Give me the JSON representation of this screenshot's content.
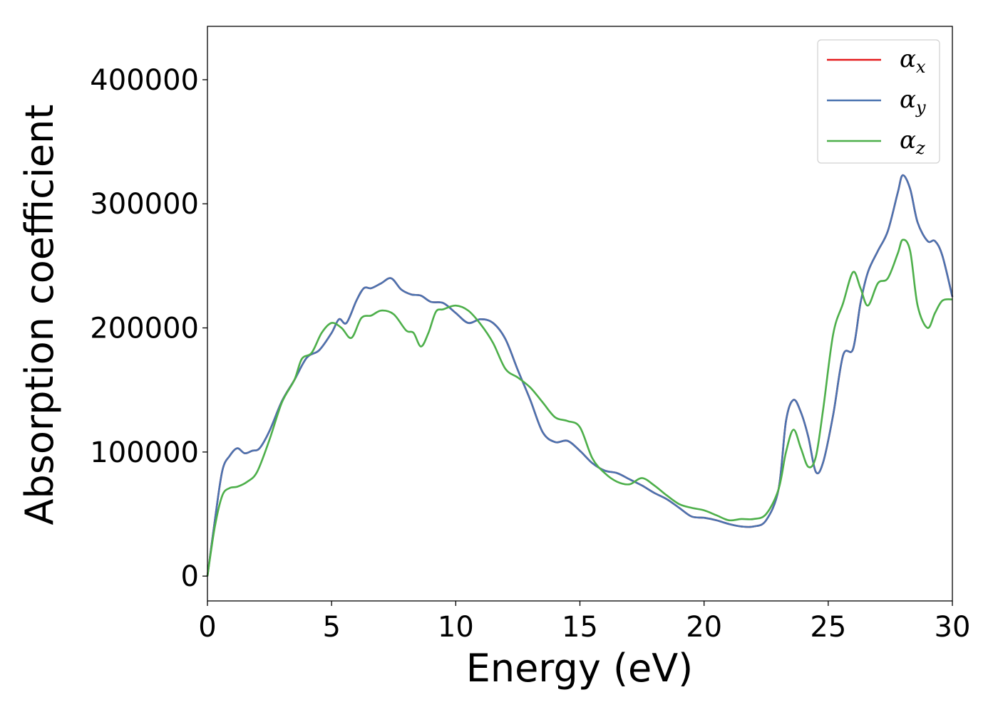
{
  "chart_data": {
    "type": "line",
    "title": "",
    "xlabel": "Energy (eV)",
    "ylabel": "Absorption coefficient",
    "xlim": [
      0,
      30
    ],
    "ylim": [
      -20000,
      443000
    ],
    "xticks": [
      0,
      5,
      10,
      15,
      20,
      25,
      30
    ],
    "yticks": [
      0,
      100000,
      200000,
      300000,
      400000
    ],
    "grid": false,
    "legend_position": "top-right",
    "series": [
      {
        "name": "α",
        "subscript": "x",
        "color": "#e41a1c",
        "x": [
          0,
          0.3,
          0.6,
          0.9,
          1.2,
          1.5,
          1.8,
          2.1,
          2.5,
          3,
          3.5,
          4,
          4.5,
          5,
          5.3,
          5.6,
          6,
          6.3,
          6.6,
          7,
          7.4,
          7.8,
          8.2,
          8.6,
          9,
          9.5,
          10,
          10.5,
          11,
          11.5,
          12,
          12.5,
          13,
          13.5,
          14,
          14.5,
          15,
          15.5,
          16,
          16.5,
          17,
          17.5,
          18,
          18.5,
          19,
          19.5,
          20,
          20.5,
          21,
          21.5,
          22,
          22.5,
          23,
          23.3,
          23.6,
          23.9,
          24.2,
          24.5,
          24.8,
          25.2,
          25.6,
          26,
          26.3,
          26.6,
          27,
          27.4,
          27.8,
          28,
          28.3,
          28.6,
          29,
          29.3,
          29.6,
          30
        ],
        "y": [
          0,
          45000,
          85000,
          97000,
          103000,
          99000,
          101000,
          103000,
          117000,
          141000,
          158000,
          176000,
          182000,
          196000,
          207000,
          204000,
          222000,
          232000,
          232000,
          236000,
          240000,
          231000,
          227000,
          226000,
          221000,
          220000,
          212000,
          204000,
          207000,
          204000,
          191000,
          166000,
          142000,
          116000,
          108000,
          109000,
          101000,
          91000,
          85000,
          83000,
          78000,
          73000,
          67000,
          62000,
          55000,
          48000,
          47000,
          45000,
          42000,
          40000,
          40000,
          45000,
          70000,
          125000,
          142000,
          132000,
          112000,
          84000,
          92000,
          130000,
          178000,
          183000,
          220000,
          245000,
          262000,
          278000,
          309000,
          323000,
          312000,
          285000,
          270000,
          270000,
          258000,
          225000
        ]
      },
      {
        "name": "α",
        "subscript": "y",
        "color": "#4a73b0",
        "x": [
          0,
          0.3,
          0.6,
          0.9,
          1.2,
          1.5,
          1.8,
          2.1,
          2.5,
          3,
          3.5,
          4,
          4.5,
          5,
          5.3,
          5.6,
          6,
          6.3,
          6.6,
          7,
          7.4,
          7.8,
          8.2,
          8.6,
          9,
          9.5,
          10,
          10.5,
          11,
          11.5,
          12,
          12.5,
          13,
          13.5,
          14,
          14.5,
          15,
          15.5,
          16,
          16.5,
          17,
          17.5,
          18,
          18.5,
          19,
          19.5,
          20,
          20.5,
          21,
          21.5,
          22,
          22.5,
          23,
          23.3,
          23.6,
          23.9,
          24.2,
          24.5,
          24.8,
          25.2,
          25.6,
          26,
          26.3,
          26.6,
          27,
          27.4,
          27.8,
          28,
          28.3,
          28.6,
          29,
          29.3,
          29.6,
          30
        ],
        "y": [
          0,
          45000,
          85000,
          97000,
          103000,
          99000,
          101000,
          103000,
          117000,
          141000,
          158000,
          176000,
          182000,
          196000,
          207000,
          204000,
          222000,
          232000,
          232000,
          236000,
          240000,
          231000,
          227000,
          226000,
          221000,
          220000,
          212000,
          204000,
          207000,
          204000,
          191000,
          166000,
          142000,
          116000,
          108000,
          109000,
          101000,
          91000,
          85000,
          83000,
          78000,
          73000,
          67000,
          62000,
          55000,
          48000,
          47000,
          45000,
          42000,
          40000,
          40000,
          45000,
          70000,
          125000,
          142000,
          132000,
          112000,
          84000,
          92000,
          130000,
          178000,
          183000,
          220000,
          245000,
          262000,
          278000,
          309000,
          323000,
          312000,
          285000,
          270000,
          270000,
          258000,
          225000
        ]
      },
      {
        "name": "α",
        "subscript": "z",
        "color": "#4daf4a",
        "x": [
          0,
          0.3,
          0.6,
          0.9,
          1.2,
          1.6,
          2,
          2.5,
          3,
          3.5,
          3.8,
          4.2,
          4.6,
          5,
          5.4,
          5.8,
          6.2,
          6.6,
          7,
          7.5,
          8,
          8.3,
          8.6,
          8.9,
          9.2,
          9.5,
          10,
          10.5,
          11,
          11.5,
          12,
          12.5,
          13,
          13.5,
          14,
          14.5,
          15,
          15.5,
          16,
          16.5,
          17,
          17.5,
          18,
          18.5,
          19,
          19.5,
          20,
          20.5,
          21,
          21.5,
          22,
          22.5,
          23,
          23.3,
          23.6,
          23.9,
          24.2,
          24.5,
          24.8,
          25.2,
          25.6,
          26,
          26.3,
          26.6,
          27,
          27.4,
          27.8,
          28,
          28.3,
          28.6,
          29,
          29.3,
          29.6,
          30
        ],
        "y": [
          0,
          40000,
          65000,
          71000,
          72000,
          76000,
          84000,
          110000,
          140000,
          158000,
          175000,
          180000,
          196000,
          204000,
          200000,
          192000,
          208000,
          210000,
          214000,
          211000,
          198000,
          196000,
          185000,
          196000,
          213000,
          215000,
          218000,
          214000,
          203000,
          188000,
          167000,
          160000,
          152000,
          140000,
          128000,
          125000,
          120000,
          95000,
          83000,
          76000,
          74000,
          79000,
          73000,
          65000,
          58000,
          55000,
          53000,
          49000,
          45000,
          46000,
          46000,
          50000,
          70000,
          100000,
          118000,
          103000,
          88000,
          96000,
          135000,
          195000,
          220000,
          245000,
          232000,
          218000,
          236000,
          240000,
          260000,
          271000,
          262000,
          218000,
          200000,
          212000,
          222000,
          223000
        ]
      }
    ]
  }
}
